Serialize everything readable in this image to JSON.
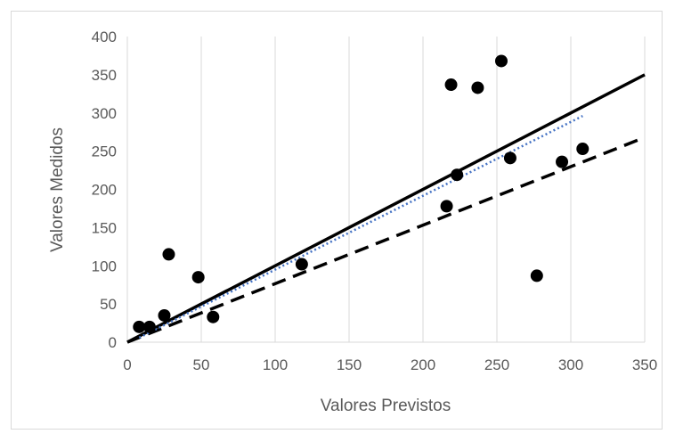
{
  "chart_data": {
    "type": "scatter",
    "title": "",
    "xlabel": "Valores Previstos",
    "ylabel": "Valores Medidos",
    "xlim": [
      0,
      350
    ],
    "ylim": [
      0,
      400
    ],
    "x_ticks": [
      0,
      50,
      100,
      150,
      200,
      250,
      300,
      350
    ],
    "y_ticks": [
      0,
      50,
      100,
      150,
      200,
      250,
      300,
      350,
      400
    ],
    "grid": "vertical",
    "legend": "none",
    "series": [
      {
        "style": "markers",
        "color": "#000000",
        "points": [
          [
            8,
            20
          ],
          [
            15,
            20
          ],
          [
            25,
            35
          ],
          [
            28,
            115
          ],
          [
            48,
            85
          ],
          [
            58,
            33
          ],
          [
            118,
            102
          ],
          [
            216,
            178
          ],
          [
            219,
            337
          ],
          [
            223,
            219
          ],
          [
            237,
            333
          ],
          [
            253,
            368
          ],
          [
            259,
            241
          ],
          [
            277,
            87
          ],
          [
            294,
            236
          ],
          [
            308,
            253
          ]
        ]
      },
      {
        "style": "solid-line",
        "color": "#000000",
        "points": [
          [
            0,
            0
          ],
          [
            350,
            350
          ]
        ]
      },
      {
        "style": "dashed-line",
        "color": "#000000",
        "points": [
          [
            0,
            0
          ],
          [
            350,
            268
          ]
        ]
      },
      {
        "style": "dotted-line",
        "color": "#4472c4",
        "points": [
          [
            8,
            6
          ],
          [
            308,
            296
          ]
        ]
      }
    ]
  }
}
